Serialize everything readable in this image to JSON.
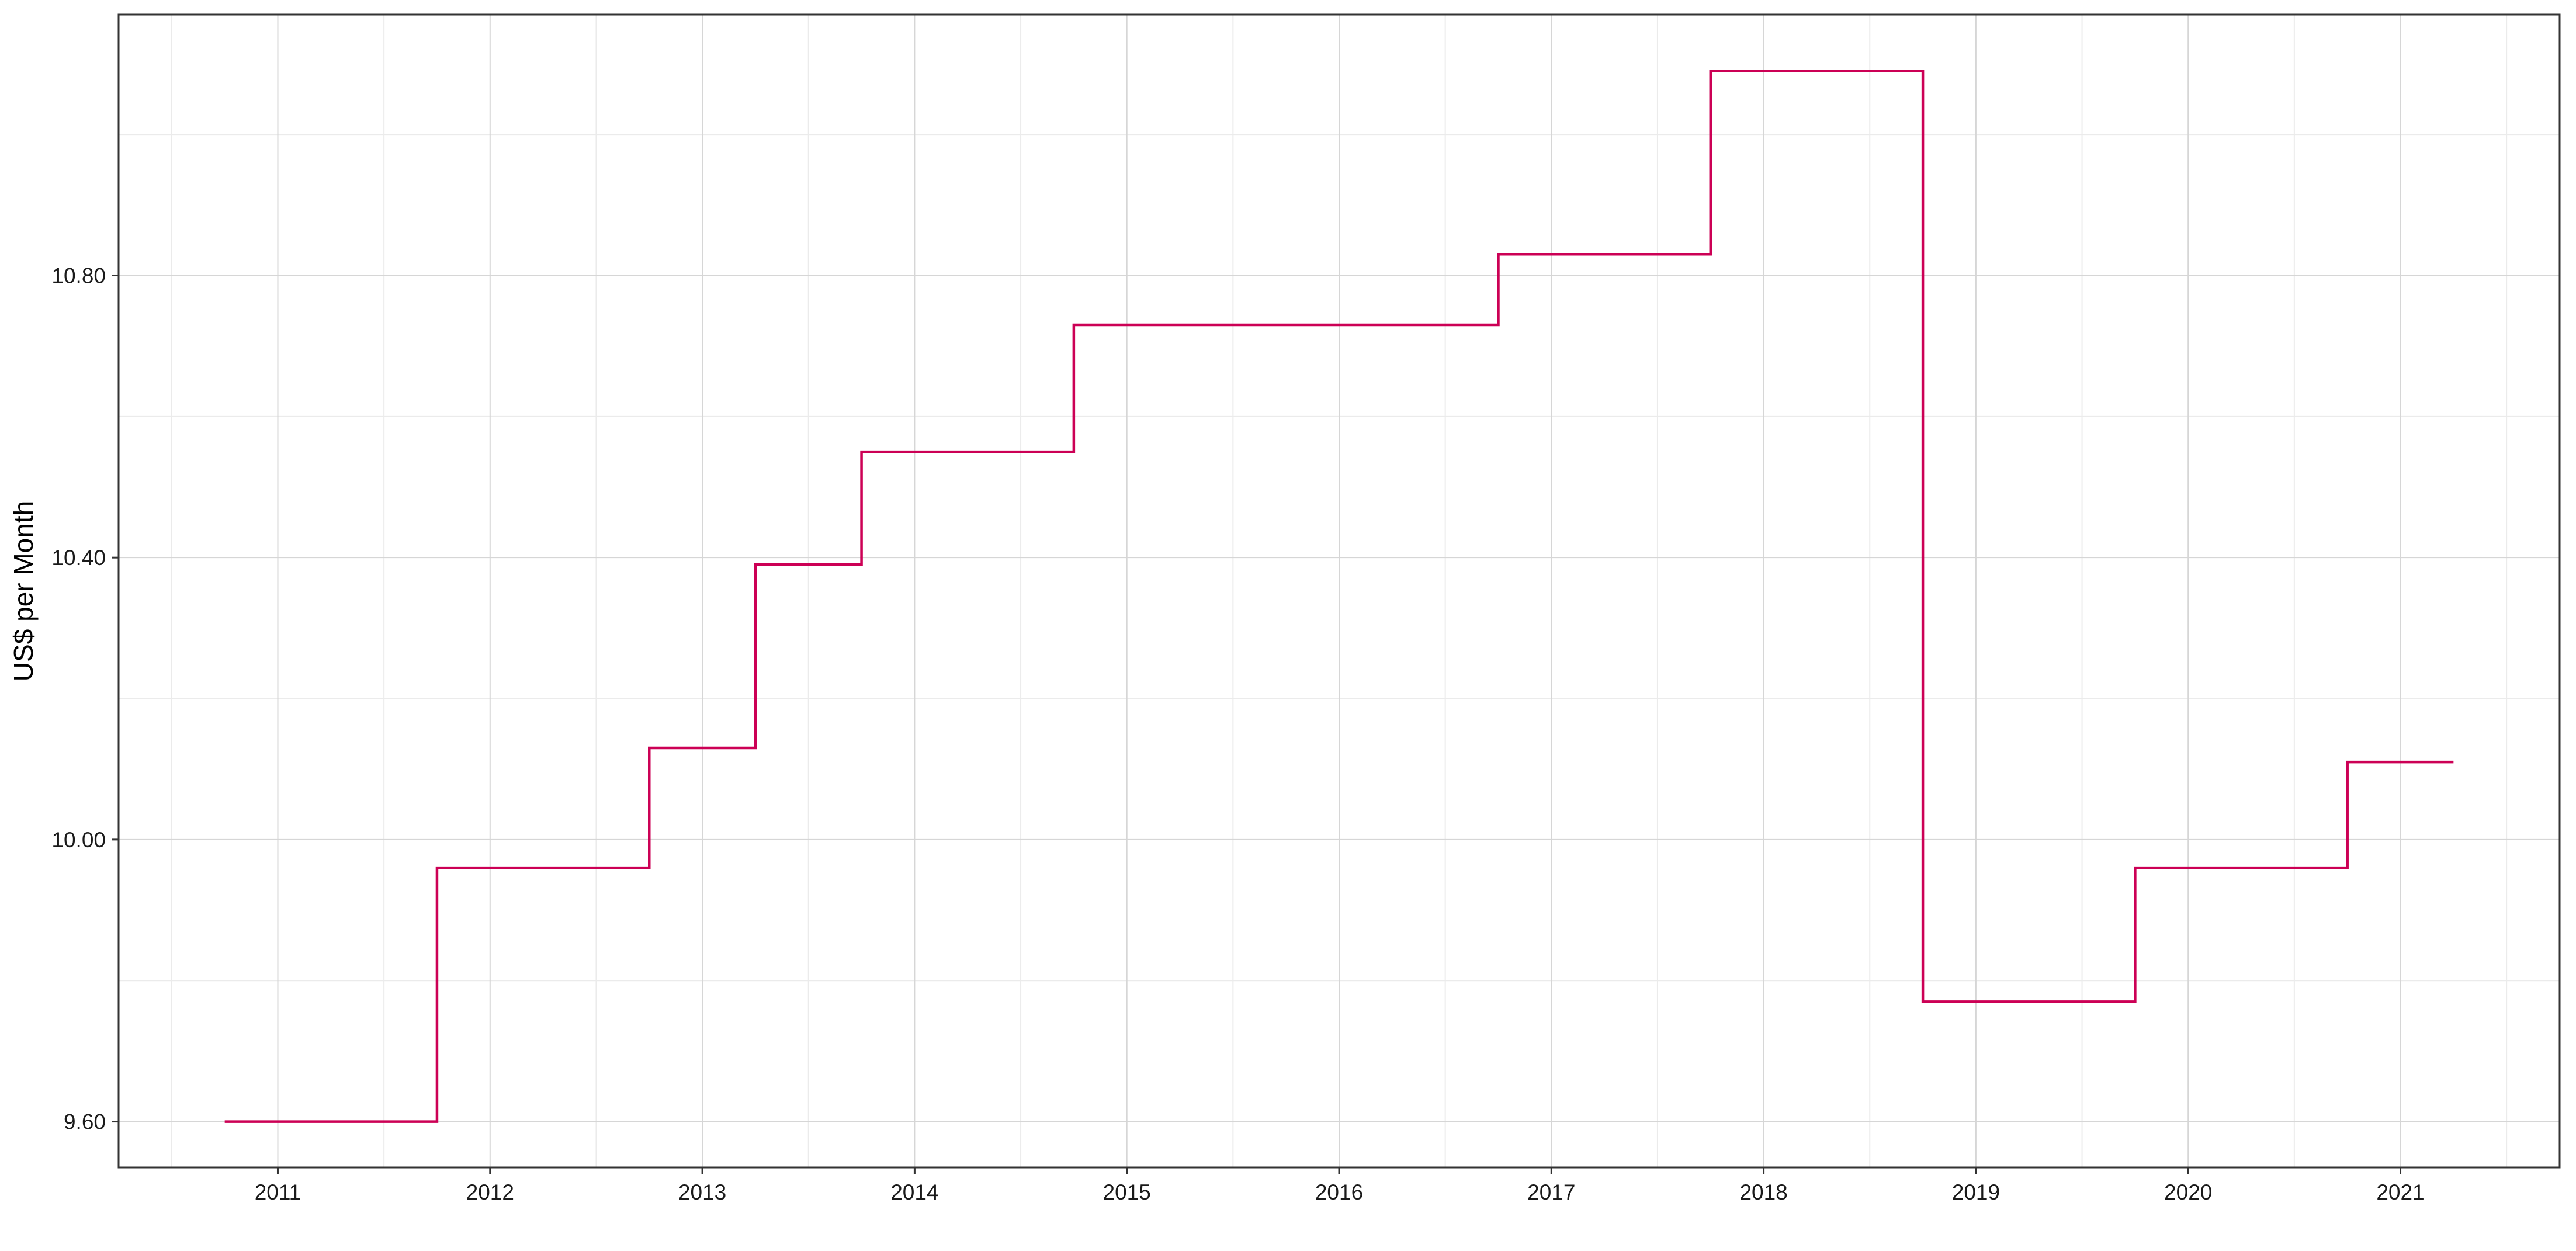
{
  "chart_data": {
    "type": "line",
    "line_style": "step",
    "title": "",
    "xlabel": "",
    "ylabel": "US$ per Month",
    "x_tick_labels": [
      "2011",
      "2012",
      "2013",
      "2014",
      "2015",
      "2016",
      "2017",
      "2018",
      "2019",
      "2020",
      "2021"
    ],
    "y_tick_labels": [
      "9.60",
      "10.00",
      "10.40",
      "10.80"
    ],
    "y_ticks": [
      9.6,
      10.0,
      10.4,
      10.8
    ],
    "xlim": [
      2010.25,
      2021.75
    ],
    "ylim": [
      9.535,
      11.17
    ],
    "grid": true,
    "legend": "none",
    "series": [
      {
        "color": "#cc0055",
        "x": [
          2010.75,
          2011.75,
          2012.75,
          2013.25,
          2013.75,
          2014.75,
          2016.75,
          2017.75,
          2018.75,
          2019.75,
          2020.75,
          2021.25
        ],
        "values": [
          9.6,
          9.96,
          10.13,
          10.39,
          10.55,
          10.73,
          10.83,
          11.09,
          9.77,
          9.96,
          10.11,
          10.11
        ]
      }
    ]
  }
}
